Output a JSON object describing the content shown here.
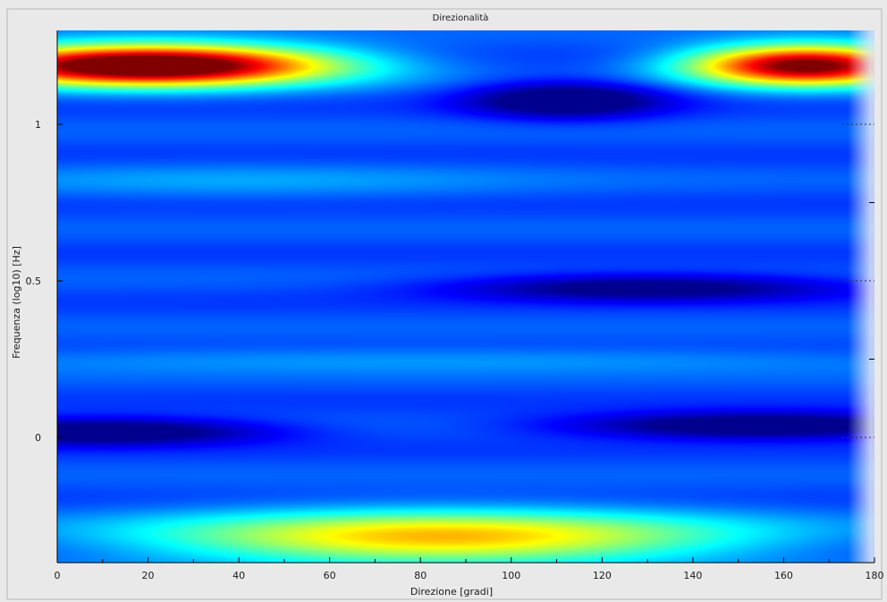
{
  "chart_data": {
    "type": "heatmap",
    "title": "Direzionalità",
    "xlabel": "Direzione [gradi]",
    "ylabel": "Frequenza (log10) [Hz]",
    "xlim": [
      0,
      180
    ],
    "ylim": [
      -0.4,
      1.3
    ],
    "x_ticks": [
      0,
      20,
      40,
      60,
      80,
      100,
      120,
      140,
      160,
      180
    ],
    "y_ticks": [
      0,
      0.5,
      1
    ],
    "grid": false,
    "colormap": "jet",
    "colorscale_colors": [
      "#00008f",
      "#0050ff",
      "#00ffff",
      "#ffff00",
      "#ff0000",
      "#800000"
    ],
    "background_color": "#3a5ea8",
    "bands": [
      {
        "x": 20,
        "y": 1.19,
        "sx": 28,
        "sy": 0.045,
        "value": 1.0
      },
      {
        "x": 165,
        "y": 1.19,
        "sx": 18,
        "sy": 0.045,
        "value": 0.85
      },
      {
        "x": 85,
        "y": -0.32,
        "sx": 45,
        "sy": 0.06,
        "value": 0.5
      },
      {
        "x": 10,
        "y": 0.02,
        "sx": 25,
        "sy": 0.03,
        "value": -0.3
      },
      {
        "x": 155,
        "y": 0.04,
        "sx": 30,
        "sy": 0.03,
        "value": -0.3
      },
      {
        "x": 130,
        "y": 0.48,
        "sx": 30,
        "sy": 0.03,
        "value": -0.25
      },
      {
        "x": 112,
        "y": 1.08,
        "sx": 15,
        "sy": 0.04,
        "value": -0.3
      },
      {
        "x": 80,
        "y": 0.25,
        "sx": 90,
        "sy": 0.03,
        "value": 0.08
      },
      {
        "x": 40,
        "y": 0.82,
        "sx": 45,
        "sy": 0.04,
        "value": 0.07
      }
    ]
  }
}
